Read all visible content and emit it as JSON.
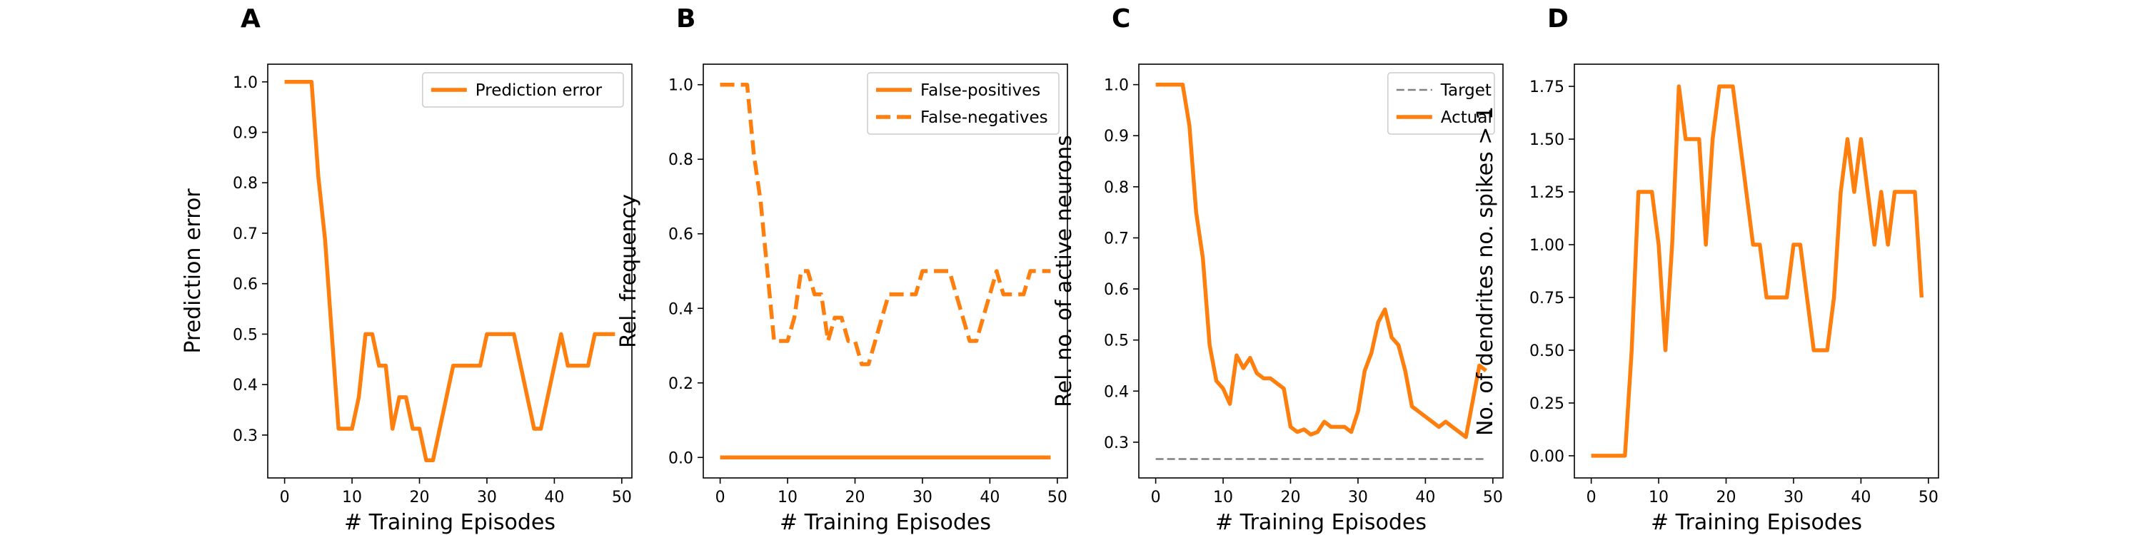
{
  "colors": {
    "series": "#ff7f0e",
    "target": "#808080",
    "frame": "#000000",
    "legend_border": "#cccccc"
  },
  "chart_data": [
    {
      "panel": "A",
      "type": "line",
      "xlabel": "# Training Episodes",
      "ylabel": "Prediction error",
      "xlim": [
        -2.5,
        51.5
      ],
      "ylim": [
        0.215,
        1.035
      ],
      "xticks": [
        "0",
        "10",
        "20",
        "30",
        "40",
        "50"
      ],
      "yticks": [
        "0.3",
        "0.4",
        "0.5",
        "0.6",
        "0.7",
        "0.8",
        "0.9",
        "1.0"
      ],
      "legend": "top-right",
      "series": [
        {
          "name": "Prediction error",
          "style": "solid",
          "x": [
            0,
            1,
            2,
            3,
            4,
            5,
            6,
            7,
            8,
            9,
            10,
            11,
            12,
            13,
            14,
            15,
            16,
            17,
            18,
            19,
            20,
            21,
            22,
            23,
            24,
            25,
            26,
            27,
            28,
            29,
            30,
            31,
            32,
            33,
            34,
            35,
            36,
            37,
            38,
            39,
            40,
            41,
            42,
            43,
            44,
            45,
            46,
            47,
            48,
            49
          ],
          "y": [
            1.0,
            1.0,
            1.0,
            1.0,
            1.0,
            0.8125,
            0.6875,
            0.5,
            0.3125,
            0.3125,
            0.3125,
            0.375,
            0.5,
            0.5,
            0.4375,
            0.4375,
            0.3125,
            0.375,
            0.375,
            0.3125,
            0.3125,
            0.25,
            0.25,
            0.3125,
            0.375,
            0.4375,
            0.4375,
            0.4375,
            0.4375,
            0.4375,
            0.5,
            0.5,
            0.5,
            0.5,
            0.5,
            0.4375,
            0.375,
            0.3125,
            0.3125,
            0.375,
            0.4375,
            0.5,
            0.4375,
            0.4375,
            0.4375,
            0.4375,
            0.5,
            0.5,
            0.5,
            0.5
          ]
        }
      ]
    },
    {
      "panel": "B",
      "type": "line",
      "xlabel": "# Training Episodes",
      "ylabel": "Rel. frequency",
      "xlim": [
        -2.5,
        51.5
      ],
      "ylim": [
        -0.055,
        1.055
      ],
      "xticks": [
        "0",
        "10",
        "20",
        "30",
        "40",
        "50"
      ],
      "yticks": [
        "0.0",
        "0.2",
        "0.4",
        "0.6",
        "0.8",
        "1.0"
      ],
      "legend": "top-right",
      "series": [
        {
          "name": "False-positives",
          "style": "solid",
          "x": [
            0,
            49
          ],
          "y": [
            0.0,
            0.0
          ]
        },
        {
          "name": "False-negatives",
          "style": "dashed",
          "x": [
            0,
            1,
            2,
            3,
            4,
            5,
            6,
            7,
            8,
            9,
            10,
            11,
            12,
            13,
            14,
            15,
            16,
            17,
            18,
            19,
            20,
            21,
            22,
            23,
            24,
            25,
            26,
            27,
            28,
            29,
            30,
            31,
            32,
            33,
            34,
            35,
            36,
            37,
            38,
            39,
            40,
            41,
            42,
            43,
            44,
            45,
            46,
            47,
            48,
            49
          ],
          "y": [
            1.0,
            1.0,
            1.0,
            1.0,
            1.0,
            0.8125,
            0.6875,
            0.5,
            0.3125,
            0.3125,
            0.3125,
            0.375,
            0.5,
            0.5,
            0.4375,
            0.4375,
            0.3125,
            0.375,
            0.375,
            0.3125,
            0.3125,
            0.25,
            0.25,
            0.3125,
            0.375,
            0.4375,
            0.4375,
            0.4375,
            0.4375,
            0.4375,
            0.5,
            0.5,
            0.5,
            0.5,
            0.5,
            0.4375,
            0.375,
            0.3125,
            0.3125,
            0.375,
            0.4375,
            0.5,
            0.4375,
            0.4375,
            0.4375,
            0.4375,
            0.5,
            0.5,
            0.5,
            0.5
          ]
        }
      ]
    },
    {
      "panel": "C",
      "type": "line",
      "xlabel": "# Training Episodes",
      "ylabel": "Rel. no. of active neurons",
      "xlim": [
        -2.5,
        51.5
      ],
      "ylim": [
        0.23,
        1.04
      ],
      "xticks": [
        "0",
        "10",
        "20",
        "30",
        "40",
        "50"
      ],
      "yticks": [
        "0.3",
        "0.4",
        "0.5",
        "0.6",
        "0.7",
        "0.8",
        "0.9",
        "1.0"
      ],
      "legend": "top-right",
      "series": [
        {
          "name": "Target",
          "style": "dashed",
          "x": [
            0,
            49
          ],
          "y": [
            0.267,
            0.267
          ]
        },
        {
          "name": "Actual",
          "style": "solid",
          "x": [
            0,
            1,
            2,
            3,
            4,
            5,
            6,
            7,
            8,
            9,
            10,
            11,
            12,
            13,
            14,
            15,
            16,
            17,
            18,
            19,
            20,
            21,
            22,
            23,
            24,
            25,
            26,
            27,
            28,
            29,
            30,
            31,
            32,
            33,
            34,
            35,
            36,
            37,
            38,
            39,
            40,
            41,
            42,
            43,
            44,
            45,
            46,
            47,
            48,
            49
          ],
          "y": [
            1.0,
            1.0,
            1.0,
            1.0,
            1.0,
            0.92,
            0.75,
            0.66,
            0.49,
            0.42,
            0.405,
            0.375,
            0.47,
            0.445,
            0.465,
            0.435,
            0.425,
            0.425,
            0.415,
            0.405,
            0.33,
            0.32,
            0.325,
            0.315,
            0.32,
            0.34,
            0.33,
            0.33,
            0.33,
            0.32,
            0.36,
            0.44,
            0.475,
            0.535,
            0.56,
            0.505,
            0.49,
            0.44,
            0.37,
            0.36,
            0.35,
            0.34,
            0.33,
            0.34,
            0.33,
            0.32,
            0.31,
            0.38,
            0.45,
            0.44
          ]
        }
      ]
    },
    {
      "panel": "D",
      "type": "line",
      "xlabel": "# Training Episodes",
      "ylabel": "No. of dendrites no. spikes > 1",
      "xlim": [
        -2.5,
        51.5
      ],
      "ylim": [
        -0.105,
        1.855
      ],
      "xticks": [
        "0",
        "10",
        "20",
        "30",
        "40",
        "50"
      ],
      "yticks": [
        "0.00",
        "0.25",
        "0.50",
        "0.75",
        "1.00",
        "1.25",
        "1.50",
        "1.75"
      ],
      "legend": "none",
      "series": [
        {
          "style": "solid",
          "x": [
            0,
            1,
            2,
            3,
            4,
            5,
            6,
            7,
            8,
            9,
            10,
            11,
            12,
            13,
            14,
            15,
            16,
            17,
            18,
            19,
            20,
            21,
            22,
            23,
            24,
            25,
            26,
            27,
            28,
            29,
            30,
            31,
            32,
            33,
            34,
            35,
            36,
            37,
            38,
            39,
            40,
            41,
            42,
            43,
            44,
            45,
            46,
            47,
            48,
            49
          ],
          "y": [
            0,
            0,
            0,
            0,
            0,
            0,
            0.5,
            1.25,
            1.25,
            1.25,
            1.0,
            0.5,
            1.0,
            1.75,
            1.5,
            1.5,
            1.5,
            1.0,
            1.5,
            1.75,
            1.75,
            1.75,
            1.5,
            1.25,
            1.0,
            1.0,
            0.75,
            0.75,
            0.75,
            0.75,
            1.0,
            1.0,
            0.75,
            0.5,
            0.5,
            0.5,
            0.75,
            1.25,
            1.5,
            1.25,
            1.5,
            1.25,
            1.0,
            1.25,
            1.0,
            1.25,
            1.25,
            1.25,
            1.25,
            0.75
          ]
        }
      ]
    }
  ]
}
